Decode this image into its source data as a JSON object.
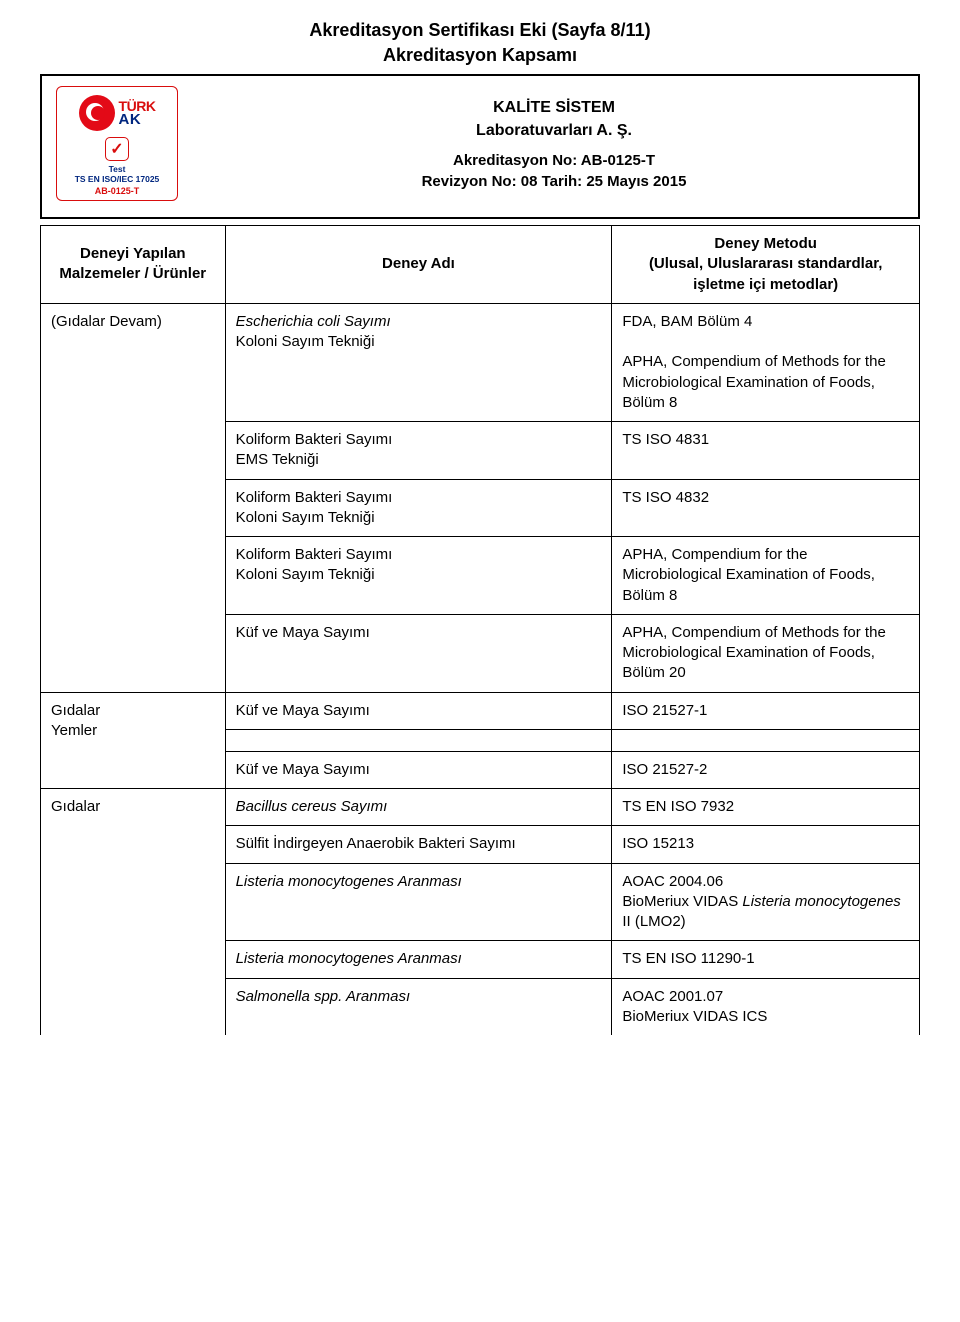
{
  "title1": "Akreditasyon Sertifikası Eki (Sayfa 8/11)",
  "title2": "Akreditasyon Kapsamı",
  "org1": "KALİTE SİSTEM",
  "org2": "Laboratuvarları A. Ş.",
  "accred_no": "Akreditasyon No: AB-0125-T",
  "rev": "Revizyon No: 08 Tarih: 25 Mayıs 2015",
  "logo": {
    "tk_top": "TÜRK",
    "tk_bot": "AK",
    "check_glyph": "✓",
    "sub1": "Test",
    "sub2": "TS EN ISO/IEC 17025",
    "code": "AB-0125-T"
  },
  "headers": {
    "c1a": "Deneyi Yapılan",
    "c1b": "Malzemeler / Ürünler",
    "c2": "Deney Adı",
    "c3a": "Deney Metodu",
    "c3b": "(Ulusal, Uluslararası standardlar,",
    "c3c": "işletme içi metodlar)"
  },
  "g1": {
    "mat": "(Gıdalar Devam)",
    "r1_name": "Escherichia coli Sayımı",
    "r1_tech": "Koloni Sayım Tekniği",
    "r1_m1": "FDA, BAM Bölüm 4",
    "r1_m2": "APHA, Compendium of Methods for the Microbiological Examination of Foods, Bölüm 8",
    "r2_name": "Koliform Bakteri Sayımı",
    "r2_tech": "EMS Tekniği",
    "r2_m": "TS ISO 4831",
    "r3_name": "Koliform Bakteri Sayımı",
    "r3_tech": "Koloni Sayım Tekniği",
    "r3_m": "TS ISO 4832",
    "r4_name": "Koliform Bakteri Sayımı",
    "r4_tech": "Koloni Sayım Tekniği",
    "r4_m": "APHA, Compendium for the Microbiological Examination of Foods, Bölüm 8",
    "r5_name": "Küf ve Maya Sayımı",
    "r5_m": "APHA, Compendium of Methods for the Microbiological Examination of Foods, Bölüm 20"
  },
  "g2": {
    "mat1": "Gıdalar",
    "mat2": "Yemler",
    "r1_name": "Küf ve Maya Sayımı",
    "r1_m": "ISO 21527-1",
    "r2_name": "Küf ve Maya Sayımı",
    "r2_m": "ISO 21527-2"
  },
  "g3": {
    "mat": "Gıdalar",
    "r1_name": "Bacillus cereus Sayımı",
    "r1_m": "TS EN ISO 7932",
    "r2_name": "Sülfit İndirgeyen Anaerobik Bakteri Sayımı",
    "r2_m": "ISO 15213",
    "r3_name": "Listeria monocytogenes Aranması",
    "r3_m1": "AOAC 2004.06",
    "r3_m2a": "BioMeriux VIDAS ",
    "r3_m2b": "Listeria monocytogenes",
    "r3_m2c": " II (LMO2)",
    "r4_name": "Listeria monocytogenes Aranması",
    "r4_m": "TS EN ISO 11290-1",
    "r5_name": "Salmonella spp. Aranması",
    "r5_m1": "AOAC 2001.07",
    "r5_m2": "BioMeriux VIDAS ICS"
  }
}
